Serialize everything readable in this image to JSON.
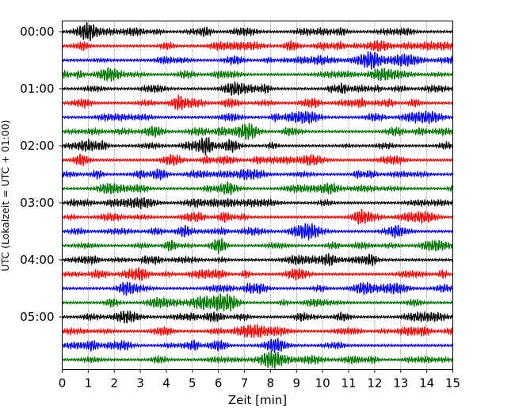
{
  "chart_data": {
    "type": "line",
    "title": "",
    "xlabel": "Zeit  [min]",
    "ylabel": "UTC (Lokalzeit = UTC + 01:00)",
    "xlim": [
      0,
      15
    ],
    "x_ticks": [
      "0",
      "1",
      "2",
      "3",
      "4",
      "5",
      "6",
      "7",
      "8",
      "9",
      "10",
      "11",
      "12",
      "13",
      "14",
      "15"
    ],
    "y_ticks": [
      "00:00",
      "01:00",
      "02:00",
      "03:00",
      "04:00",
      "05:00"
    ],
    "grid": "vertical dotted at each minute",
    "trace_colors": [
      "#000000",
      "#ff0000",
      "#0000ff",
      "#007700"
    ],
    "trace_interval_minutes": 15,
    "traces": [
      {
        "start": "00:00",
        "color": "#000000"
      },
      {
        "start": "00:15",
        "color": "#ff0000"
      },
      {
        "start": "00:30",
        "color": "#0000ff"
      },
      {
        "start": "00:45",
        "color": "#007700"
      },
      {
        "start": "01:00",
        "color": "#000000"
      },
      {
        "start": "01:15",
        "color": "#ff0000"
      },
      {
        "start": "01:30",
        "color": "#0000ff"
      },
      {
        "start": "01:45",
        "color": "#007700"
      },
      {
        "start": "02:00",
        "color": "#000000"
      },
      {
        "start": "02:15",
        "color": "#ff0000"
      },
      {
        "start": "02:30",
        "color": "#0000ff"
      },
      {
        "start": "02:45",
        "color": "#007700"
      },
      {
        "start": "03:00",
        "color": "#000000"
      },
      {
        "start": "03:15",
        "color": "#ff0000"
      },
      {
        "start": "03:30",
        "color": "#0000ff"
      },
      {
        "start": "03:45",
        "color": "#007700"
      },
      {
        "start": "04:00",
        "color": "#000000"
      },
      {
        "start": "04:15",
        "color": "#ff0000"
      },
      {
        "start": "04:30",
        "color": "#0000ff"
      },
      {
        "start": "04:45",
        "color": "#007700"
      },
      {
        "start": "05:00",
        "color": "#000000"
      },
      {
        "start": "05:15",
        "color": "#ff0000"
      },
      {
        "start": "05:30",
        "color": "#0000ff"
      },
      {
        "start": "05:45",
        "color": "#007700"
      }
    ]
  }
}
